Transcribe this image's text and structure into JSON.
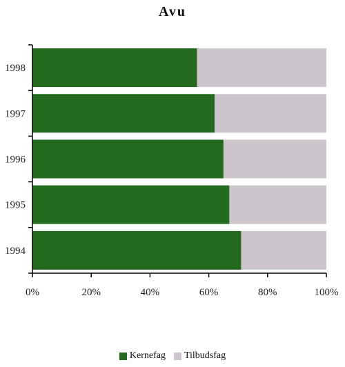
{
  "chart_data": {
    "type": "bar",
    "orientation": "horizontal",
    "stacked": "percent",
    "title": "Avu",
    "categories": [
      "1998",
      "1997",
      "1996",
      "1995",
      "1994"
    ],
    "series": [
      {
        "name": "Kernefag",
        "color": "#246B1F",
        "values": [
          56,
          62,
          65,
          67,
          71
        ]
      },
      {
        "name": "Tilbudsfag",
        "color": "#CCC6CC",
        "values": [
          44,
          38,
          35,
          33,
          29
        ]
      }
    ],
    "xlim": [
      0,
      100
    ],
    "xticks": [
      "0%",
      "20%",
      "40%",
      "60%",
      "80%",
      "100%"
    ],
    "xlabel": "",
    "ylabel": "",
    "grid": false,
    "legend": "bottom"
  }
}
